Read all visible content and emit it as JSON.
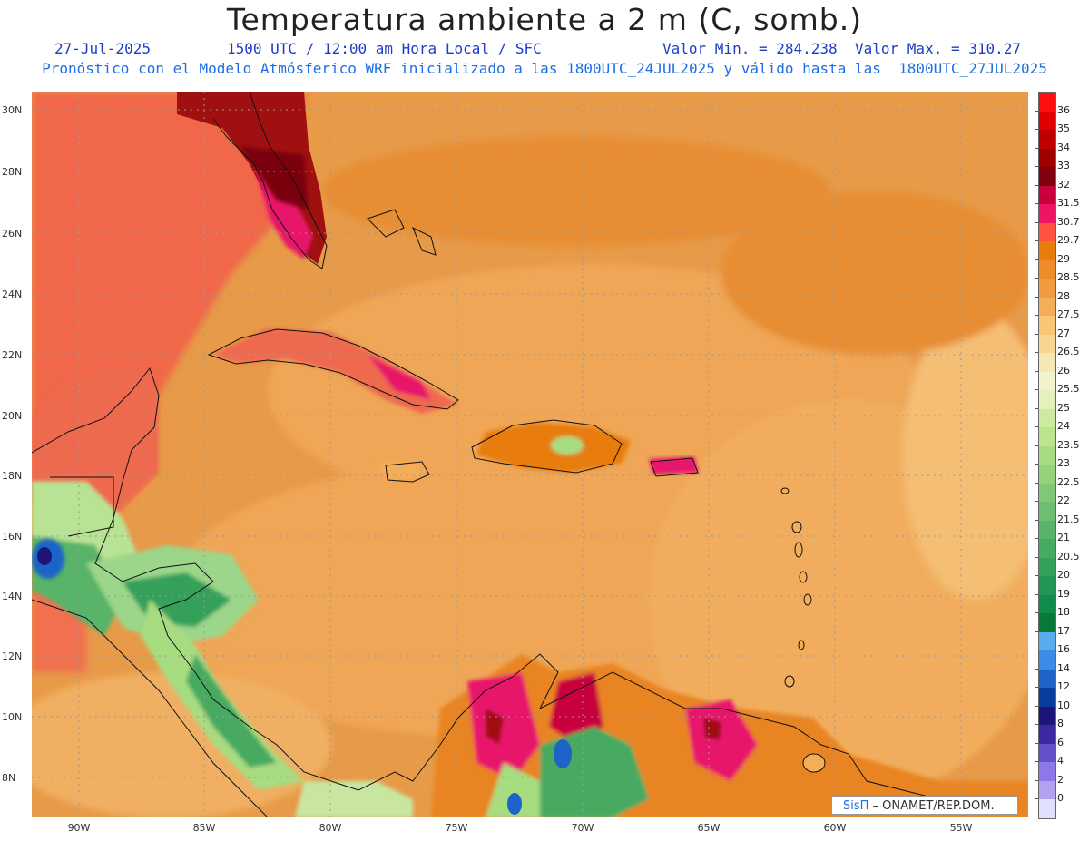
{
  "header": {
    "title": "Temperatura ambiente a 2 m (C, somb.)",
    "date": "27-Jul-2025",
    "time_info": "1500 UTC / 12:00 am Hora Local / SFC",
    "min_value": "Valor Min. = 284.238",
    "max_value": "Valor Max. = 310.27",
    "forecast_info": "Pronóstico con el Modelo Atmósferico WRF inicializado a las 1800UTC_24JUL2025 y válido hasta las  1800UTC_27JUL2025"
  },
  "axes": {
    "lat_labels": [
      "30N",
      "28N",
      "26N",
      "24N",
      "22N",
      "20N",
      "18N",
      "16N",
      "14N",
      "12N",
      "10N",
      "8N"
    ],
    "lon_labels": [
      "90W",
      "85W",
      "80W",
      "75W",
      "70W",
      "65W",
      "60W",
      "55W"
    ]
  },
  "legend": {
    "levels": [
      "36",
      "35",
      "34",
      "33",
      "32",
      "31.5",
      "30.7",
      "29.7",
      "29",
      "28.5",
      "28",
      "27.5",
      "27",
      "26.5",
      "26",
      "25.5",
      "25",
      "24",
      "23.5",
      "23",
      "22.5",
      "22",
      "21.5",
      "21",
      "20.5",
      "20",
      "19",
      "18",
      "17",
      "16",
      "14",
      "12",
      "10",
      "8",
      "6",
      "4",
      "2",
      "0"
    ],
    "colors": [
      "#ff1010",
      "#e00000",
      "#c00000",
      "#a00000",
      "#800010",
      "#c8003c",
      "#f01464",
      "#ff5040",
      "#e87d0c",
      "#ee8c28",
      "#f29a40",
      "#f5ae58",
      "#f8c674",
      "#f8d690",
      "#f6e6b2",
      "#f2f2cc",
      "#e6f0bc",
      "#cceba0",
      "#bce48c",
      "#a8dc80",
      "#94d27c",
      "#80c878",
      "#6cbe70",
      "#58b468",
      "#46aa60",
      "#34a05a",
      "#229654",
      "#108c4c",
      "#0a7838",
      "#5aaaf0",
      "#3c8ce6",
      "#1e64c8",
      "#0a3ca0",
      "#1e1478",
      "#3c28a0",
      "#6450c8",
      "#8c78e6",
      "#b4a0f0",
      "#e0e0ff"
    ],
    "top_color": "#ff1010"
  },
  "credit": {
    "brand": "SisΠ",
    "text": " – ONAMET/REP.DOM."
  }
}
